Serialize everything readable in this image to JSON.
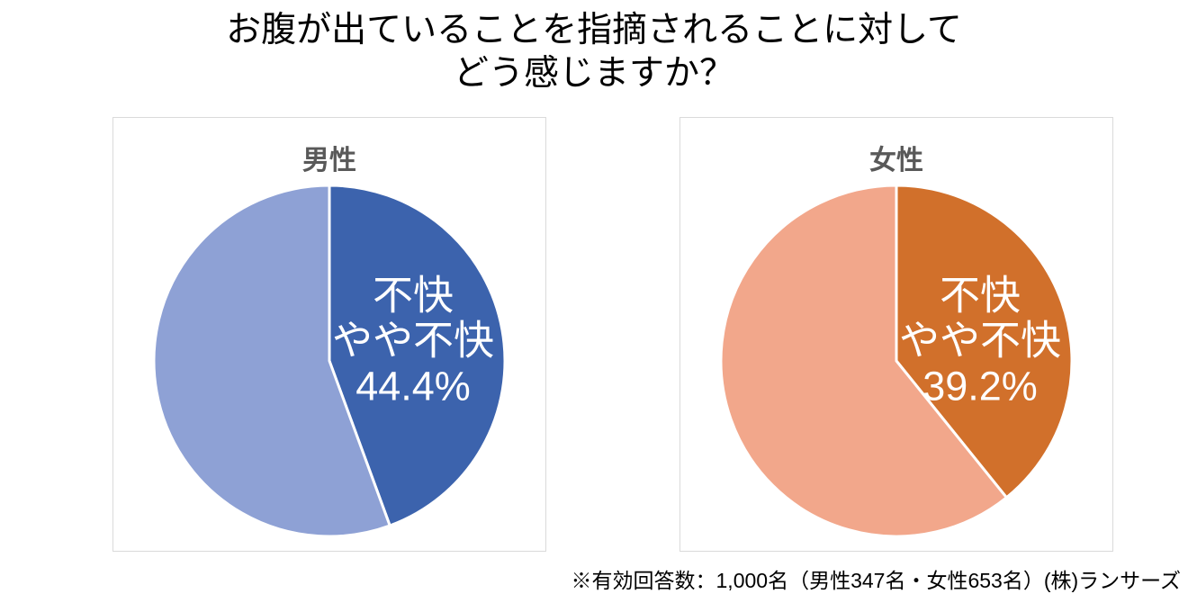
{
  "title": "お腹が出ていることを指摘されることに対して\nどう感じますか？",
  "footnote": "※有効回答数：1,000名（男性347名・女性653名）(株)ランサーズ",
  "colors": {
    "male_highlight": "#3C63AD",
    "male_rest": "#8EA1D5",
    "female_highlight": "#D1702B",
    "female_rest": "#F2A78B",
    "card_border": "#DADADA",
    "card_title_text": "#595959",
    "callout_text": "#FFFFFF"
  },
  "chart_data": [
    {
      "type": "pie",
      "title": "男性",
      "start_angle_deg": 0,
      "direction": "clockwise",
      "legend": "none",
      "slices": [
        {
          "label": "不快・やや不快",
          "value": 44.4,
          "color": "#3C63AD"
        },
        {
          "label": "",
          "value": 55.6,
          "color": "#8EA1D5"
        }
      ],
      "callout": {
        "lines": [
          "不快",
          "やや不快",
          "44.4%"
        ]
      }
    },
    {
      "type": "pie",
      "title": "女性",
      "start_angle_deg": 0,
      "direction": "clockwise",
      "legend": "none",
      "slices": [
        {
          "label": "不快・やや不快",
          "value": 39.2,
          "color": "#D1702B"
        },
        {
          "label": "",
          "value": 60.8,
          "color": "#F2A78B"
        }
      ],
      "callout": {
        "lines": [
          "不快",
          "やや不快",
          "39.2%"
        ]
      }
    }
  ]
}
